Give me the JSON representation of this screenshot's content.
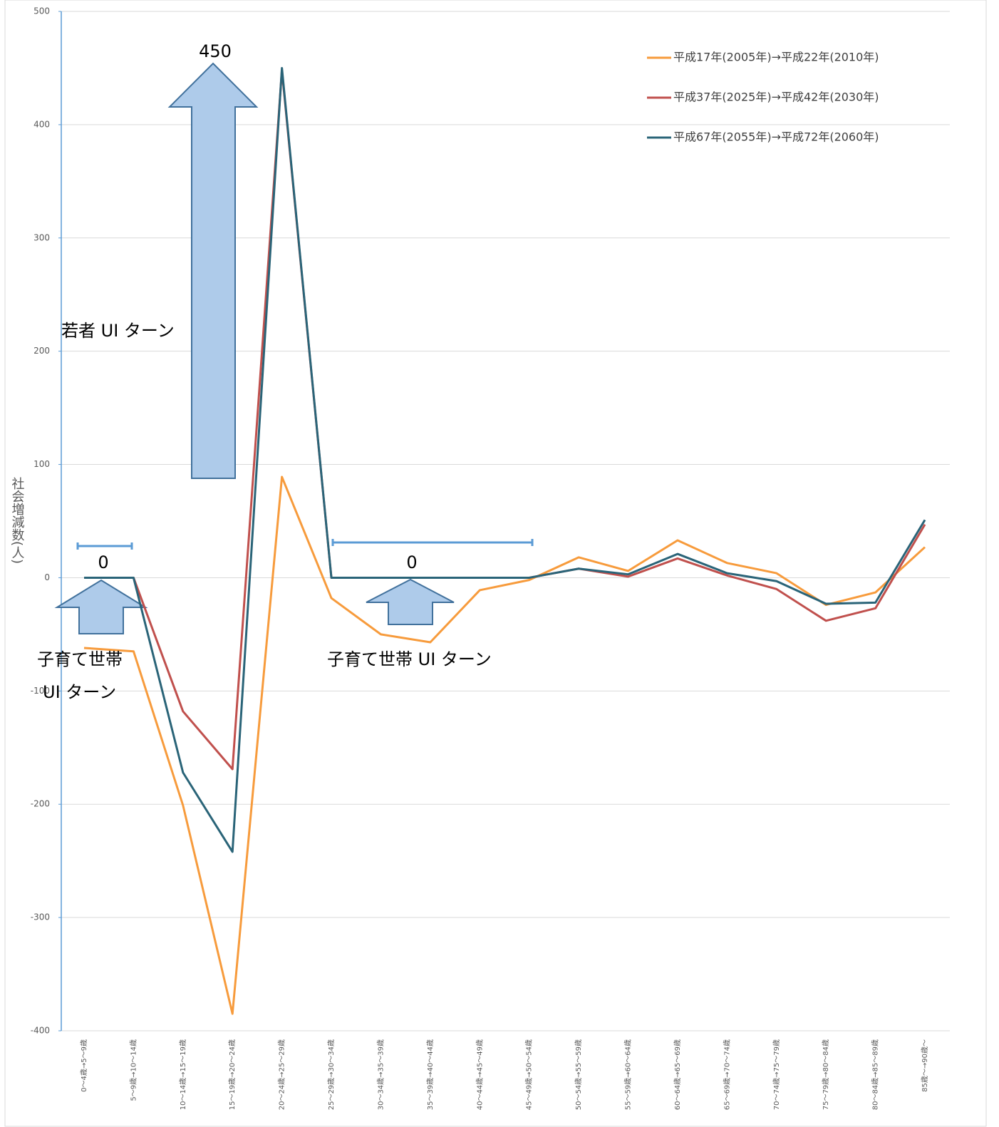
{
  "chart_data": {
    "type": "line",
    "y_label": "社会増減数(人)",
    "categories": [
      "0～4歳→5～9歳",
      "5～9歳→10～14歳",
      "10～14歳→15～19歳",
      "15～19歳→20～24歳",
      "20～24歳→25～29歳",
      "25～29歳→30～34歳",
      "30～34歳→35～39歳",
      "35～39歳→40～44歳",
      "40～44歳→45～49歳",
      "45～49歳→50～54歳",
      "50～54歳→55～59歳",
      "55～59歳→60～64歳",
      "60～64歳→65～69歳",
      "65～69歳→70～74歳",
      "70～74歳→75～79歳",
      "75～79歳→80～84歳",
      "80～84歳→85～89歳",
      "85歳～→90歳～"
    ],
    "series": [
      {
        "name": "平成17年(2005年)→平成22年(2010年)",
        "color": "#f79b3c",
        "values": [
          -62,
          -65,
          -201,
          -385,
          89,
          -18,
          -50,
          -57,
          -11,
          -2,
          18,
          6,
          33,
          13,
          4,
          -24,
          -13,
          27
        ]
      },
      {
        "name": "平成37年(2025年)→平成42年(2030年)",
        "color": "#c0504d",
        "values": [
          0,
          0,
          -118,
          -169,
          448,
          0,
          0,
          0,
          0,
          0,
          8,
          1,
          17,
          2,
          -10,
          -38,
          -27,
          47
        ]
      },
      {
        "name": "平成67年(2055年)→平成72年(2060年)",
        "color": "#2a6478",
        "values": [
          0,
          0,
          -172,
          -242,
          450,
          0,
          0,
          0,
          0,
          0,
          8,
          3,
          21,
          4,
          -3,
          -23,
          -22,
          51
        ]
      }
    ],
    "ylim": [
      -400,
      500
    ],
    "yticks": [
      -400,
      -300,
      -200,
      -100,
      0,
      100,
      200,
      300,
      400,
      500
    ],
    "grid": true,
    "legend": "upper right",
    "annotations": [
      "450",
      "若者 UI ターン",
      "0",
      "子育て世帯",
      "UI ターン",
      "0",
      "子育て世帯 UI ターン"
    ]
  }
}
